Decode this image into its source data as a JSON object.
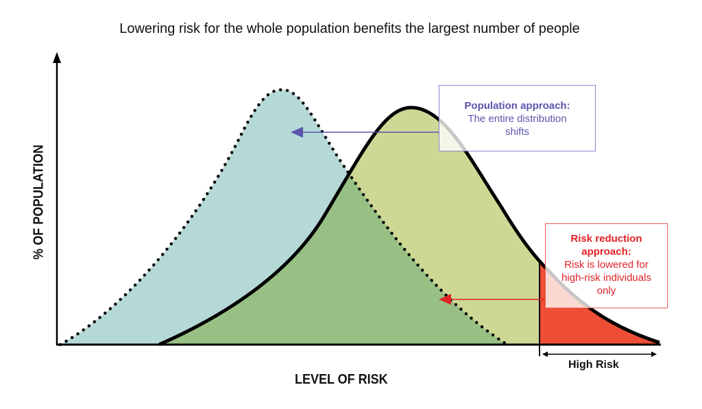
{
  "title": "Lowering risk for the whole population benefits the largest number of people",
  "x_axis_label": "LEVEL OF RISK",
  "y_axis_label": "% OF POPULATION",
  "population_box": {
    "heading": "Population approach:",
    "body": "The entire distribution shifts"
  },
  "risk_box": {
    "heading": "Risk reduction approach:",
    "body": "Risk is lowered for high-risk individuals only"
  },
  "high_risk_label": "High Risk",
  "colors": {
    "shifted_fill": "#b5d9d6",
    "original_fill": "#cdd894",
    "overlap_fill": "#98c085",
    "high_risk_fill": "#ee4e35",
    "population_accent": "#5b55ad",
    "risk_accent": "#df2226"
  }
}
